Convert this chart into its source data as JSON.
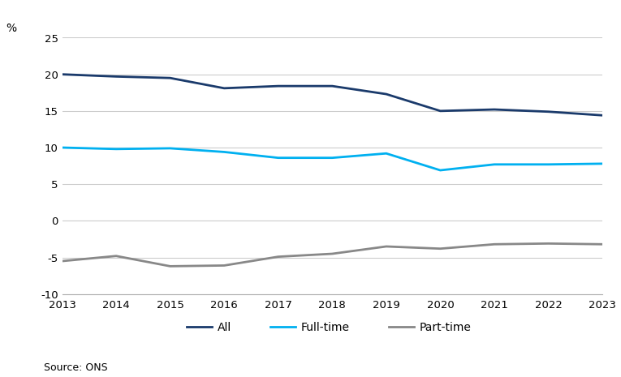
{
  "years": [
    2013,
    2014,
    2015,
    2016,
    2017,
    2018,
    2019,
    2020,
    2021,
    2022,
    2023
  ],
  "all": [
    20.0,
    19.7,
    19.5,
    18.1,
    18.4,
    18.4,
    17.3,
    15.0,
    15.2,
    14.9,
    14.4
  ],
  "fulltime": [
    10.0,
    9.8,
    9.9,
    9.4,
    8.6,
    8.6,
    9.2,
    6.9,
    7.7,
    7.7,
    7.8
  ],
  "parttime": [
    -5.5,
    -4.8,
    -6.2,
    -6.1,
    -4.9,
    -4.5,
    -3.5,
    -3.8,
    -3.2,
    -3.1,
    -3.2
  ],
  "colors": {
    "all": "#1a3a6b",
    "fulltime": "#00b0f0",
    "parttime": "#888888"
  },
  "ylim": [
    -10,
    25
  ],
  "yticks": [
    -10,
    -5,
    0,
    5,
    10,
    15,
    20,
    25
  ],
  "ylabel": "%",
  "source": "Source: ONS",
  "legend_labels": [
    "All",
    "Full-time",
    "Part-time"
  ],
  "background_color": "#ffffff",
  "grid_color": "#cccccc",
  "line_width": 2.0
}
